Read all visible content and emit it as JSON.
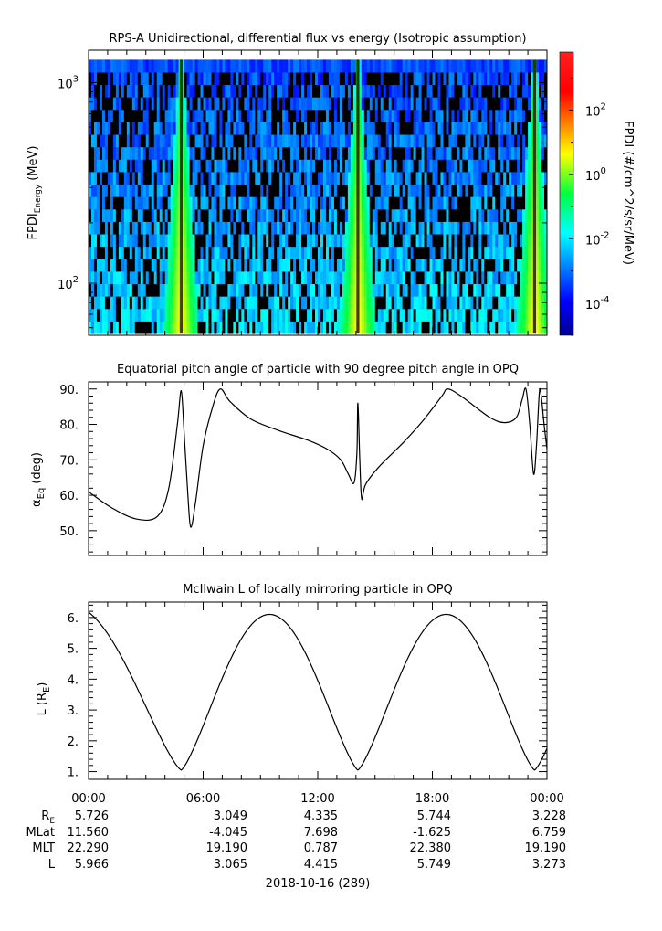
{
  "chart_data": [
    {
      "type": "heatmap",
      "title": "RPS-A Unidirectional, differential flux vs energy (Isotropic assumption)",
      "ylabel": "FPDI",
      "ylabel_sub": "Energy",
      "ylabel_unit": "(MeV)",
      "yscale": "log",
      "ylim": [
        55,
        1450
      ],
      "yticks": [
        {
          "v": 100,
          "b": "10",
          "e": "2"
        },
        {
          "v": 1000,
          "b": "10",
          "e": "3"
        }
      ],
      "zscale": "log",
      "zlim_log10": [
        -5,
        3.8
      ],
      "colorbar_label": "FPDI (#/cm^2/s/sr/MeV)",
      "colorbar_ticks": [
        {
          "v": 2,
          "b": "10",
          "e": "2"
        },
        {
          "v": 0,
          "b": "10",
          "e": "0"
        },
        {
          "v": -2,
          "b": "10",
          "e": "-2"
        },
        {
          "v": -4,
          "b": "10",
          "e": "-4"
        }
      ],
      "energy_channel_top": 1300,
      "perigee_hours": [
        4.85,
        14.1,
        23.35
      ],
      "peak_log10_flux": 0.9,
      "background_log10_flux": [
        -3.5,
        -1.5
      ]
    },
    {
      "type": "line",
      "title": "Equatorial pitch angle of particle with 90 degree pitch angle in OPQ",
      "ylabel_sym": "α",
      "ylabel_sub": "Eq",
      "ylabel_unit": "(deg)",
      "ylim": [
        43,
        92
      ],
      "yticks": [
        50,
        60,
        70,
        80,
        90
      ],
      "points": [
        [
          0,
          61
        ],
        [
          1.2,
          56.5
        ],
        [
          2.5,
          53.3
        ],
        [
          3.6,
          54
        ],
        [
          4.2,
          62
        ],
        [
          4.65,
          80
        ],
        [
          4.85,
          89.5
        ],
        [
          5.0,
          78
        ],
        [
          5.2,
          60
        ],
        [
          5.35,
          51
        ],
        [
          5.6,
          58
        ],
        [
          6.0,
          74
        ],
        [
          6.5,
          85
        ],
        [
          6.9,
          90
        ],
        [
          7.4,
          86.5
        ],
        [
          8.5,
          81.5
        ],
        [
          10,
          78.2
        ],
        [
          11.5,
          75.5
        ],
        [
          12.5,
          73
        ],
        [
          13.2,
          70
        ],
        [
          13.6,
          66
        ],
        [
          13.9,
          63.5
        ],
        [
          14.05,
          72
        ],
        [
          14.1,
          86
        ],
        [
          14.2,
          70
        ],
        [
          14.3,
          59
        ],
        [
          14.5,
          63
        ],
        [
          15.2,
          68
        ],
        [
          16.5,
          75
        ],
        [
          17.5,
          81
        ],
        [
          18.5,
          88
        ],
        [
          18.8,
          90
        ],
        [
          19.5,
          88
        ],
        [
          21,
          82
        ],
        [
          21.8,
          80.5
        ],
        [
          22.4,
          82
        ],
        [
          22.7,
          87
        ],
        [
          22.9,
          90
        ],
        [
          23.1,
          80
        ],
        [
          23.3,
          66
        ],
        [
          23.45,
          74
        ],
        [
          23.6,
          89
        ],
        [
          23.7,
          88
        ],
        [
          23.85,
          80
        ],
        [
          24,
          73
        ]
      ]
    },
    {
      "type": "line",
      "title": "McIlwain L of locally mirroring particle in OPQ",
      "ylabel": "L",
      "ylabel_unit": "(R",
      "ylabel_unit_sub": "E",
      "ylabel_unit_end": ")",
      "ylim": [
        0.75,
        6.5
      ],
      "yticks": [
        1,
        2,
        3,
        4,
        5,
        6
      ],
      "curve": {
        "perigee_hours": [
          4.85,
          14.1,
          23.35
        ],
        "min_L": 1.05,
        "max_L": [
          6.4,
          6.1,
          6.1
        ]
      }
    }
  ],
  "xaxis": {
    "xlim": [
      0,
      24
    ],
    "major_ticks": [
      {
        "h": 0,
        "label": "00:00"
      },
      {
        "h": 6,
        "label": "06:00"
      },
      {
        "h": 12,
        "label": "12:00"
      },
      {
        "h": 18,
        "label": "18:00"
      },
      {
        "h": 24,
        "label": "00:00"
      }
    ],
    "minor_step_hours": 1,
    "date_label": "2018-10-16 (289)"
  },
  "ephemeris": {
    "labels": [
      "R",
      "MLat",
      "MLT",
      "L"
    ],
    "label_subs": [
      "E",
      "",
      "",
      ""
    ],
    "columns": [
      [
        "5.726",
        "11.560",
        "22.290",
        "5.966"
      ],
      [
        "3.049",
        "-4.045",
        "19.190",
        "3.065"
      ],
      [
        "4.335",
        "7.698",
        "0.787",
        "4.415"
      ],
      [
        "5.744",
        "-1.625",
        "22.380",
        "5.749"
      ],
      [
        "3.228",
        "6.759",
        "19.190",
        "3.273"
      ]
    ]
  }
}
